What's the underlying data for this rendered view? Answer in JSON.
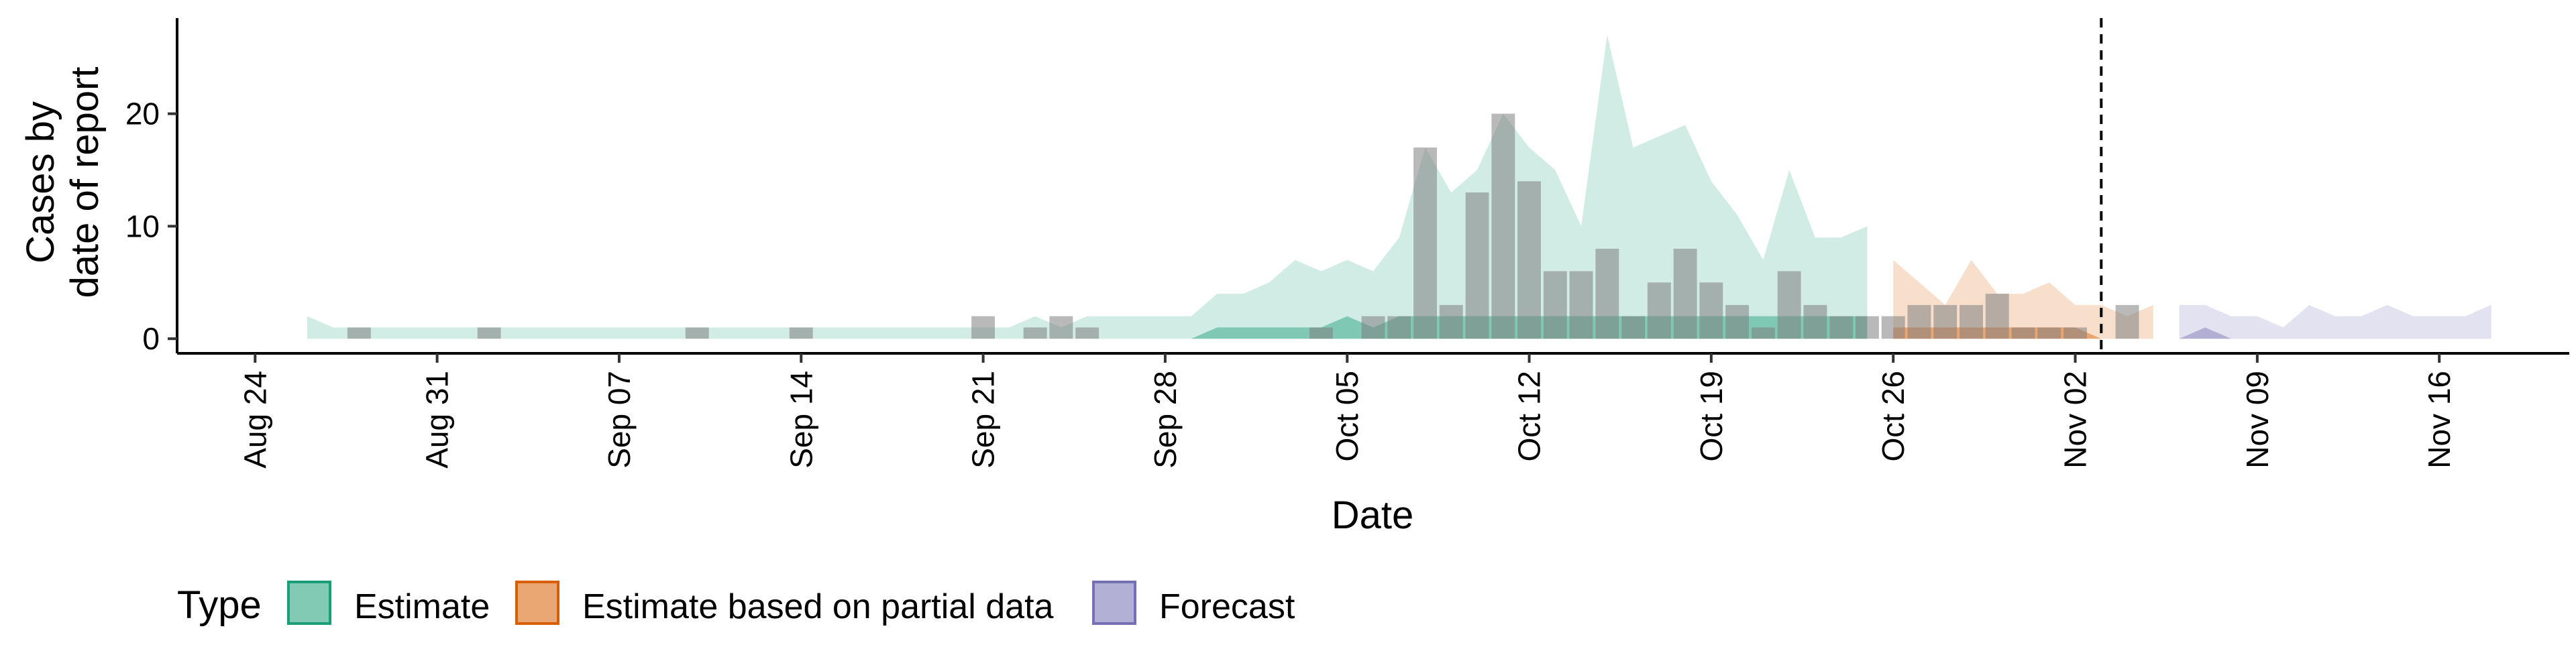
{
  "chart_data": {
    "type": "area",
    "xlabel": "Date",
    "ylabel_lines": [
      "Cases by",
      "date of report"
    ],
    "x_range": [
      "2020-08-21",
      "2020-11-21"
    ],
    "ylim": [
      -1.3,
      28.5
    ],
    "y_ticks": [
      0,
      10,
      20
    ],
    "x_ticks": [
      {
        "date": "2020-08-24",
        "label": "Aug 24"
      },
      {
        "date": "2020-08-31",
        "label": "Aug 31"
      },
      {
        "date": "2020-09-07",
        "label": "Sep 07"
      },
      {
        "date": "2020-09-14",
        "label": "Sep 14"
      },
      {
        "date": "2020-09-21",
        "label": "Sep 21"
      },
      {
        "date": "2020-09-28",
        "label": "Sep 28"
      },
      {
        "date": "2020-10-05",
        "label": "Oct 05"
      },
      {
        "date": "2020-10-12",
        "label": "Oct 12"
      },
      {
        "date": "2020-10-19",
        "label": "Oct 19"
      },
      {
        "date": "2020-10-26",
        "label": "Oct 26"
      },
      {
        "date": "2020-11-02",
        "label": "Nov 02"
      },
      {
        "date": "2020-11-09",
        "label": "Nov 09"
      },
      {
        "date": "2020-11-16",
        "label": "Nov 16"
      }
    ],
    "reference_line_date": "2020-11-03",
    "grid": false,
    "legend_position": "bottom",
    "legend_title": "Type",
    "series": [
      {
        "name": "Estimate",
        "color": "#1B9E77",
        "outer": [
          [
            "2020-08-26",
            0,
            2
          ],
          [
            "2020-08-27",
            0,
            1
          ],
          [
            "2020-08-28",
            0,
            1
          ],
          [
            "2020-08-29",
            0,
            1
          ],
          [
            "2020-08-30",
            0,
            1
          ],
          [
            "2020-08-31",
            0,
            1
          ],
          [
            "2020-09-01",
            0,
            1
          ],
          [
            "2020-09-02",
            0,
            1
          ],
          [
            "2020-09-03",
            0,
            1
          ],
          [
            "2020-09-04",
            0,
            1
          ],
          [
            "2020-09-05",
            0,
            1
          ],
          [
            "2020-09-06",
            0,
            1
          ],
          [
            "2020-09-07",
            0,
            1
          ],
          [
            "2020-09-08",
            0,
            1
          ],
          [
            "2020-09-09",
            0,
            1
          ],
          [
            "2020-09-10",
            0,
            1
          ],
          [
            "2020-09-11",
            0,
            1
          ],
          [
            "2020-09-12",
            0,
            1
          ],
          [
            "2020-09-13",
            0,
            1
          ],
          [
            "2020-09-14",
            0,
            1
          ],
          [
            "2020-09-15",
            0,
            1
          ],
          [
            "2020-09-16",
            0,
            1
          ],
          [
            "2020-09-17",
            0,
            1
          ],
          [
            "2020-09-18",
            0,
            1
          ],
          [
            "2020-09-19",
            0,
            1
          ],
          [
            "2020-09-20",
            0,
            1
          ],
          [
            "2020-09-21",
            0,
            1
          ],
          [
            "2020-09-22",
            0,
            1
          ],
          [
            "2020-09-23",
            0,
            2
          ],
          [
            "2020-09-24",
            0,
            1
          ],
          [
            "2020-09-25",
            0,
            2
          ],
          [
            "2020-09-26",
            0,
            2
          ],
          [
            "2020-09-27",
            0,
            2
          ],
          [
            "2020-09-28",
            0,
            2
          ],
          [
            "2020-09-29",
            0,
            2
          ],
          [
            "2020-09-30",
            0,
            4
          ],
          [
            "2020-10-01",
            0,
            4
          ],
          [
            "2020-10-02",
            0,
            5
          ],
          [
            "2020-10-03",
            0,
            7
          ],
          [
            "2020-10-04",
            0,
            6
          ],
          [
            "2020-10-05",
            0,
            7
          ],
          [
            "2020-10-06",
            0,
            6
          ],
          [
            "2020-10-07",
            0,
            9
          ],
          [
            "2020-10-08",
            0,
            17
          ],
          [
            "2020-10-09",
            0,
            13
          ],
          [
            "2020-10-10",
            0,
            15
          ],
          [
            "2020-10-11",
            0,
            20
          ],
          [
            "2020-10-12",
            0,
            17
          ],
          [
            "2020-10-13",
            0,
            15
          ],
          [
            "2020-10-14",
            0,
            10
          ],
          [
            "2020-10-15",
            0,
            27
          ],
          [
            "2020-10-16",
            0,
            17
          ],
          [
            "2020-10-17",
            0,
            18
          ],
          [
            "2020-10-18",
            0,
            19
          ],
          [
            "2020-10-19",
            0,
            14
          ],
          [
            "2020-10-20",
            0,
            11
          ],
          [
            "2020-10-21",
            0,
            7
          ],
          [
            "2020-10-22",
            0,
            15
          ],
          [
            "2020-10-23",
            0,
            9
          ],
          [
            "2020-10-24",
            0,
            9
          ],
          [
            "2020-10-25",
            0,
            10
          ]
        ],
        "inner": [
          [
            "2020-09-28",
            0,
            0
          ],
          [
            "2020-09-29",
            0,
            0
          ],
          [
            "2020-09-30",
            0,
            1
          ],
          [
            "2020-10-01",
            0,
            1
          ],
          [
            "2020-10-02",
            0,
            1
          ],
          [
            "2020-10-03",
            0,
            1
          ],
          [
            "2020-10-04",
            0,
            1
          ],
          [
            "2020-10-05",
            0,
            2
          ],
          [
            "2020-10-06",
            0,
            1
          ],
          [
            "2020-10-07",
            0,
            2
          ],
          [
            "2020-10-08",
            0,
            2
          ],
          [
            "2020-10-09",
            0,
            2
          ],
          [
            "2020-10-10",
            0,
            2
          ],
          [
            "2020-10-11",
            0,
            2
          ],
          [
            "2020-10-12",
            0,
            2
          ],
          [
            "2020-10-13",
            0,
            2
          ],
          [
            "2020-10-14",
            0,
            2
          ],
          [
            "2020-10-15",
            0,
            2
          ],
          [
            "2020-10-16",
            0,
            2
          ],
          [
            "2020-10-17",
            0,
            2
          ],
          [
            "2020-10-18",
            0,
            2
          ],
          [
            "2020-10-19",
            0,
            2
          ],
          [
            "2020-10-20",
            0,
            2
          ],
          [
            "2020-10-21",
            0,
            2
          ],
          [
            "2020-10-22",
            0,
            2
          ],
          [
            "2020-10-23",
            0,
            2
          ],
          [
            "2020-10-24",
            0,
            2
          ],
          [
            "2020-10-25",
            0,
            2
          ]
        ]
      },
      {
        "name": "Estimate based on partial data",
        "color": "#D95F02",
        "outer": [
          [
            "2020-10-26",
            0,
            7
          ],
          [
            "2020-10-27",
            0,
            5
          ],
          [
            "2020-10-28",
            0,
            3
          ],
          [
            "2020-10-29",
            0,
            7
          ],
          [
            "2020-10-30",
            0,
            4
          ],
          [
            "2020-10-31",
            0,
            4
          ],
          [
            "2020-11-01",
            0,
            5
          ],
          [
            "2020-11-02",
            0,
            3
          ],
          [
            "2020-11-03",
            0,
            3
          ],
          [
            "2020-11-04",
            0,
            2
          ],
          [
            "2020-11-05",
            0,
            3
          ]
        ],
        "inner": [
          [
            "2020-10-26",
            0,
            1
          ],
          [
            "2020-10-27",
            0,
            1
          ],
          [
            "2020-10-28",
            0,
            1
          ],
          [
            "2020-10-29",
            0,
            1
          ],
          [
            "2020-10-30",
            0,
            1
          ],
          [
            "2020-10-31",
            0,
            1
          ],
          [
            "2020-11-01",
            0,
            1
          ],
          [
            "2020-11-02",
            0,
            1
          ],
          [
            "2020-11-03",
            0,
            0
          ],
          [
            "2020-11-04",
            0,
            0
          ],
          [
            "2020-11-05",
            0,
            0
          ]
        ]
      },
      {
        "name": "Forecast",
        "color": "#7570B3",
        "outer": [
          [
            "2020-11-06",
            0,
            3
          ],
          [
            "2020-11-07",
            0,
            3
          ],
          [
            "2020-11-08",
            0,
            2
          ],
          [
            "2020-11-09",
            0,
            2
          ],
          [
            "2020-11-10",
            0,
            1
          ],
          [
            "2020-11-11",
            0,
            3
          ],
          [
            "2020-11-12",
            0,
            2
          ],
          [
            "2020-11-13",
            0,
            2
          ],
          [
            "2020-11-14",
            0,
            3
          ],
          [
            "2020-11-15",
            0,
            2
          ],
          [
            "2020-11-16",
            0,
            2
          ],
          [
            "2020-11-17",
            0,
            2
          ],
          [
            "2020-11-18",
            0,
            3
          ]
        ],
        "inner": [
          [
            "2020-11-06",
            0,
            0
          ],
          [
            "2020-11-07",
            0,
            1
          ],
          [
            "2020-11-08",
            0,
            0
          ],
          [
            "2020-11-09",
            0,
            0
          ],
          [
            "2020-11-10",
            0,
            0
          ],
          [
            "2020-11-11",
            0,
            0
          ],
          [
            "2020-11-12",
            0,
            0
          ],
          [
            "2020-11-13",
            0,
            0
          ],
          [
            "2020-11-14",
            0,
            0
          ],
          [
            "2020-11-15",
            0,
            0
          ],
          [
            "2020-11-16",
            0,
            0
          ],
          [
            "2020-11-17",
            0,
            0
          ],
          [
            "2020-11-18",
            0,
            0
          ]
        ]
      }
    ],
    "observed_cases": [
      [
        "2020-08-28",
        1
      ],
      [
        "2020-09-02",
        1
      ],
      [
        "2020-09-10",
        1
      ],
      [
        "2020-09-14",
        1
      ],
      [
        "2020-09-21",
        2
      ],
      [
        "2020-09-23",
        1
      ],
      [
        "2020-09-24",
        2
      ],
      [
        "2020-09-25",
        1
      ],
      [
        "2020-10-04",
        1
      ],
      [
        "2020-10-06",
        2
      ],
      [
        "2020-10-07",
        2
      ],
      [
        "2020-10-08",
        17
      ],
      [
        "2020-10-09",
        3
      ],
      [
        "2020-10-10",
        13
      ],
      [
        "2020-10-11",
        20
      ],
      [
        "2020-10-12",
        14
      ],
      [
        "2020-10-13",
        6
      ],
      [
        "2020-10-14",
        6
      ],
      [
        "2020-10-15",
        8
      ],
      [
        "2020-10-16",
        2
      ],
      [
        "2020-10-17",
        5
      ],
      [
        "2020-10-18",
        8
      ],
      [
        "2020-10-19",
        5
      ],
      [
        "2020-10-20",
        3
      ],
      [
        "2020-10-21",
        1
      ],
      [
        "2020-10-22",
        6
      ],
      [
        "2020-10-23",
        3
      ],
      [
        "2020-10-24",
        2
      ],
      [
        "2020-10-25",
        2
      ],
      [
        "2020-10-26",
        2
      ],
      [
        "2020-10-27",
        3
      ],
      [
        "2020-10-28",
        3
      ],
      [
        "2020-10-29",
        3
      ],
      [
        "2020-10-30",
        4
      ],
      [
        "2020-10-31",
        1
      ],
      [
        "2020-11-01",
        1
      ],
      [
        "2020-11-02",
        1
      ],
      [
        "2020-11-04",
        3
      ]
    ],
    "bar_color": "#808080"
  }
}
